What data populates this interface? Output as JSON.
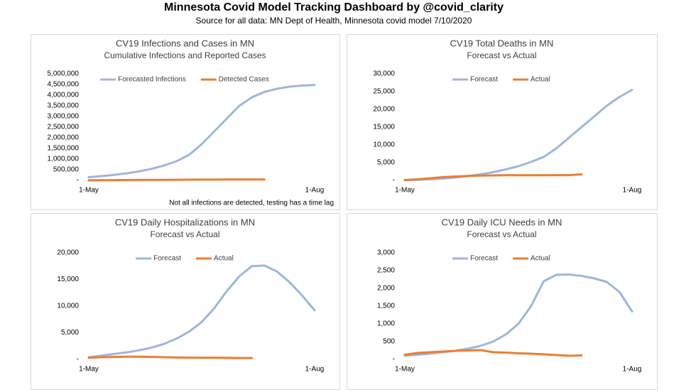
{
  "title": "Minnesota Covid Model Tracking Dashboard by @covid_clarity",
  "subtitle": "Source for all data: MN Dept of Health, Minnesota covid model 7/10/2020",
  "chart_data": [
    {
      "type": "line",
      "title": "CV19 Infections and Cases in MN",
      "subtitle": "Cumulative Infections and Reported Cases",
      "annotation": "Not all infections are detected, testing has a time lag",
      "categories": [
        "1-May",
        null,
        null,
        null,
        null,
        null,
        null,
        null,
        null,
        null,
        null,
        null,
        null,
        null,
        null,
        null,
        null,
        null,
        "1-Aug"
      ],
      "series": [
        {
          "name": "Forecasted Infections",
          "color": "#9fb5de",
          "values": [
            150000,
            200000,
            260000,
            330000,
            420000,
            540000,
            700000,
            900000,
            1200000,
            1700000,
            2300000,
            2900000,
            3500000,
            3900000,
            4150000,
            4300000,
            4400000,
            4450000,
            4480000
          ]
        },
        {
          "name": "Detected Cases",
          "color": "#ed7d31",
          "values": [
            6000,
            9000,
            13000,
            17000,
            21000,
            25000,
            28000,
            31000,
            34000,
            36000,
            38000,
            39000,
            40000,
            41000,
            42000,
            null,
            null,
            null,
            null
          ]
        }
      ],
      "ylim": [
        0,
        5000000
      ],
      "yticks": [
        {
          "value": 0,
          "label": "-"
        },
        {
          "value": 500000,
          "label": "500,000"
        },
        {
          "value": 1000000,
          "label": "1,000,000"
        },
        {
          "value": 1500000,
          "label": "1,500,000"
        },
        {
          "value": 2000000,
          "label": "2,000,000"
        },
        {
          "value": 2500000,
          "label": "2,500,000"
        },
        {
          "value": 3000000,
          "label": "3,000,000"
        },
        {
          "value": 3500000,
          "label": "3,500,000"
        },
        {
          "value": 4000000,
          "label": "4,000,000"
        },
        {
          "value": 4500000,
          "label": "4,500,000"
        },
        {
          "value": 5000000,
          "label": "5,000,000"
        }
      ],
      "legend": "top"
    },
    {
      "type": "line",
      "title": "CV19 Total Deaths in MN",
      "subtitle": "Forecast vs Actual",
      "categories": [
        "1-May",
        null,
        null,
        null,
        null,
        null,
        null,
        null,
        null,
        null,
        null,
        null,
        null,
        null,
        null,
        null,
        null,
        null,
        "1-Aug"
      ],
      "series": [
        {
          "name": "Forecast",
          "color": "#9fb5de",
          "values": [
            50,
            150,
            300,
            500,
            800,
            1200,
            1700,
            2300,
            3100,
            4000,
            5200,
            6600,
            9000,
            12000,
            15000,
            18000,
            21000,
            23500,
            25500
          ]
        },
        {
          "name": "Actual",
          "color": "#ed7d31",
          "values": [
            100,
            300,
            600,
            900,
            1100,
            1250,
            1350,
            1400,
            1430,
            1450,
            1460,
            1470,
            1480,
            1490,
            1700,
            null,
            null,
            null,
            null
          ]
        }
      ],
      "ylim": [
        0,
        30000
      ],
      "yticks": [
        {
          "value": 0,
          "label": "-"
        },
        {
          "value": 5000,
          "label": "5,000"
        },
        {
          "value": 10000,
          "label": "10,000"
        },
        {
          "value": 15000,
          "label": "15,000"
        },
        {
          "value": 20000,
          "label": "20,000"
        },
        {
          "value": 25000,
          "label": "25,000"
        },
        {
          "value": 30000,
          "label": "30,000"
        }
      ],
      "legend": "top"
    },
    {
      "type": "line",
      "title": "CV19 Daily Hospitalizations in MN",
      "subtitle": "Forecast vs Actual",
      "categories": [
        "1-May",
        null,
        null,
        null,
        null,
        null,
        null,
        null,
        null,
        null,
        null,
        null,
        null,
        null,
        null,
        null,
        null,
        null,
        "1-Aug"
      ],
      "series": [
        {
          "name": "Forecast",
          "color": "#9fb5de",
          "values": [
            400,
            700,
            1000,
            1300,
            1700,
            2200,
            2900,
            3900,
            5200,
            7000,
            9600,
            12800,
            15600,
            17500,
            17600,
            16500,
            14500,
            12000,
            9200
          ]
        },
        {
          "name": "Actual",
          "color": "#ed7d31",
          "values": [
            300,
            400,
            450,
            500,
            500,
            450,
            400,
            350,
            320,
            300,
            300,
            280,
            260,
            250,
            null,
            null,
            null,
            null,
            null
          ]
        }
      ],
      "ylim": [
        0,
        20000
      ],
      "yticks": [
        {
          "value": 0,
          "label": "-"
        },
        {
          "value": 5000,
          "label": "5,000"
        },
        {
          "value": 10000,
          "label": "10,000"
        },
        {
          "value": 15000,
          "label": "15,000"
        },
        {
          "value": 20000,
          "label": "20,000"
        }
      ],
      "legend": "top"
    },
    {
      "type": "line",
      "title": "CV19 Daily ICU Needs in MN",
      "subtitle": "Forecast vs Actual",
      "categories": [
        "1-May",
        null,
        null,
        null,
        null,
        null,
        null,
        null,
        null,
        null,
        null,
        null,
        null,
        null,
        null,
        null,
        null,
        null,
        "1-Aug"
      ],
      "series": [
        {
          "name": "Forecast",
          "color": "#9fb5de",
          "values": [
            100,
            130,
            160,
            200,
            240,
            300,
            380,
            500,
            700,
            1000,
            1500,
            2200,
            2380,
            2390,
            2350,
            2280,
            2180,
            1900,
            1350
          ]
        },
        {
          "name": "Actual",
          "color": "#ed7d31",
          "values": [
            130,
            180,
            200,
            220,
            240,
            250,
            260,
            200,
            190,
            170,
            160,
            140,
            120,
            100,
            110,
            null,
            null,
            null,
            null
          ]
        }
      ],
      "ylim": [
        0,
        3000
      ],
      "yticks": [
        {
          "value": 0,
          "label": "-"
        },
        {
          "value": 500,
          "label": "500"
        },
        {
          "value": 1000,
          "label": "1,000"
        },
        {
          "value": 1500,
          "label": "1,500"
        },
        {
          "value": 2000,
          "label": "2,000"
        },
        {
          "value": 2500,
          "label": "2,500"
        },
        {
          "value": 3000,
          "label": "3,000"
        }
      ],
      "legend": "top"
    }
  ]
}
